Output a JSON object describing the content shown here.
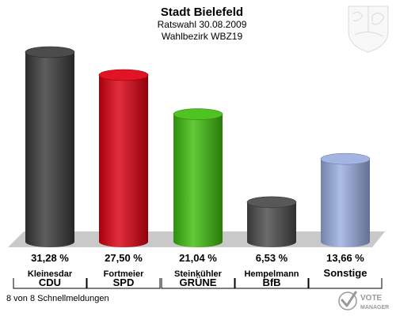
{
  "header": {
    "title": "Stadt Bielefeld",
    "subtitle1": "Ratswahl 30.08.2009",
    "subtitle2": "Wahlbezirk WBZ19"
  },
  "footer": {
    "note": "8 von 8 Schnellmeldungen",
    "logo_line1": "VOTE",
    "logo_line2": "MANAGER"
  },
  "chart_data": {
    "type": "bar",
    "categories": [
      "CDU",
      "SPD",
      "GRÜNE",
      "BfB",
      "Sonstige"
    ],
    "candidates": [
      "Kleinesdar",
      "Fortmeier",
      "Steinkühler",
      "Hempelmann",
      ""
    ],
    "values": [
      31.28,
      27.5,
      21.04,
      6.53,
      13.66
    ],
    "value_labels": [
      "31,28 %",
      "27,50 %",
      "21,04 %",
      "6,53 %",
      "13,66 %"
    ],
    "colors": [
      "#3b3b3b",
      "#dd0011",
      "#3fbe0e",
      "#4a4a4a",
      "#9aaee0"
    ],
    "ylim": [
      0,
      31.28
    ],
    "grid": false,
    "legend": "none"
  }
}
